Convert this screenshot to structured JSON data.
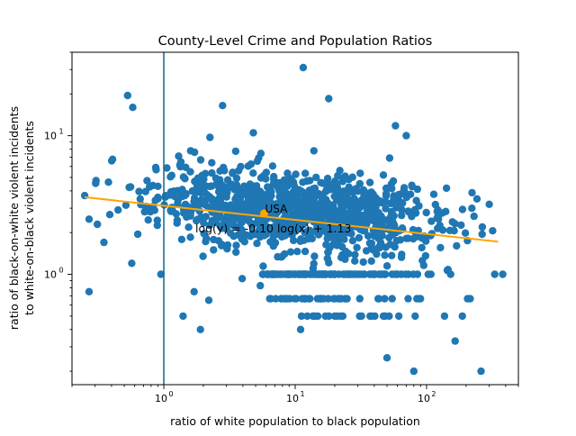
{
  "chart_data": {
    "type": "scatter",
    "title": "County-Level Crime and Population Ratios",
    "xlabel": "ratio of white population to black population",
    "ylabel_line1": "ratio of black-on-white violent incidents",
    "ylabel_line2": "to white-on-black violent incidents",
    "x_scale": "log",
    "y_scale": "log",
    "xlim": [
      0.2,
      500
    ],
    "ylim": [
      0.16,
      40
    ],
    "x_ticks": [
      {
        "value": 1,
        "label": "10",
        "sup": "0"
      },
      {
        "value": 10,
        "label": "10",
        "sup": "1"
      },
      {
        "value": 100,
        "label": "10",
        "sup": "2"
      }
    ],
    "y_ticks": [
      {
        "value": 1,
        "label": "10",
        "sup": "0"
      },
      {
        "value": 10,
        "label": "10",
        "sup": "1"
      }
    ],
    "vline_x": 1,
    "annotations": {
      "usa_label": "USA",
      "usa_point": {
        "x": 5.8,
        "y": 2.75
      },
      "fit_label": "log(y) = -0.10 log(x) + 1.13"
    },
    "fit_line": {
      "x": [
        0.25,
        350
      ],
      "y": [
        3.6,
        1.72
      ]
    },
    "colors": {
      "points": "#1f77b4",
      "fit": "#ffa500",
      "vline": "#1f6f8b"
    },
    "outliers": [
      {
        "x": 0.25,
        "y": 3.7
      },
      {
        "x": 0.27,
        "y": 2.5
      },
      {
        "x": 0.27,
        "y": 0.75
      },
      {
        "x": 0.35,
        "y": 1.7
      },
      {
        "x": 0.53,
        "y": 19.5
      },
      {
        "x": 0.58,
        "y": 16
      },
      {
        "x": 0.57,
        "y": 1.2
      },
      {
        "x": 0.95,
        "y": 1.0
      },
      {
        "x": 11.5,
        "y": 31
      },
      {
        "x": 18,
        "y": 18.5
      },
      {
        "x": 1.9,
        "y": 0.4
      },
      {
        "x": 11,
        "y": 0.4
      },
      {
        "x": 58,
        "y": 11.8
      },
      {
        "x": 70,
        "y": 10
      },
      {
        "x": 80,
        "y": 0.2
      },
      {
        "x": 50,
        "y": 0.25
      },
      {
        "x": 260,
        "y": 0.2
      },
      {
        "x": 165,
        "y": 0.33
      },
      {
        "x": 330,
        "y": 1.0
      },
      {
        "x": 380,
        "y": 1.0
      },
      {
        "x": 2.8,
        "y": 16.5
      },
      {
        "x": 2.2,
        "y": 0.65
      },
      {
        "x": 1.7,
        "y": 0.75
      },
      {
        "x": 4.8,
        "y": 10.5
      },
      {
        "x": 1.4,
        "y": 0.5
      },
      {
        "x": 300,
        "y": 3.2
      }
    ],
    "cluster": {
      "count": 1250,
      "x_log10_mean": 1.05,
      "x_log10_sd": 0.55,
      "y_log10_mean": 0.45,
      "y_log10_sd": 0.14,
      "slope_log": -0.1
    }
  }
}
